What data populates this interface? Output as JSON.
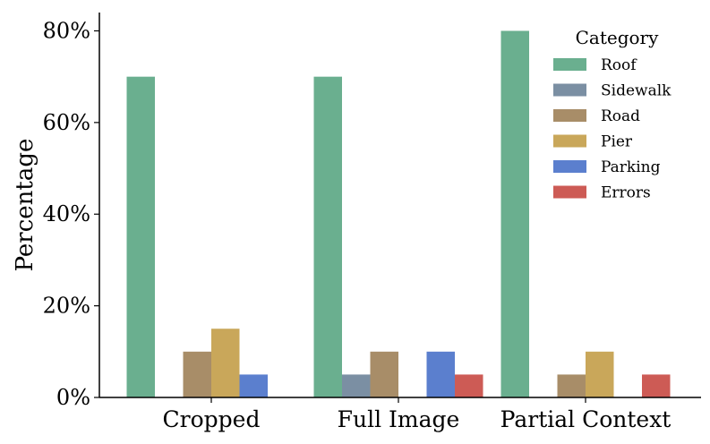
{
  "chart_data": {
    "type": "bar",
    "categories": [
      "Cropped",
      "Full Image",
      "Partial Context"
    ],
    "series": [
      {
        "name": "Roof",
        "values": [
          70,
          70,
          80
        ],
        "color": "#6aaf8f"
      },
      {
        "name": "Sidewalk",
        "values": [
          0,
          5,
          0
        ],
        "color": "#7b8fa3"
      },
      {
        "name": "Road",
        "values": [
          10,
          10,
          5
        ],
        "color": "#a88d68"
      },
      {
        "name": "Pier",
        "values": [
          15,
          0,
          10
        ],
        "color": "#c9a75a"
      },
      {
        "name": "Parking",
        "values": [
          5,
          10,
          0
        ],
        "color": "#5b7fce"
      },
      {
        "name": "Errors",
        "values": [
          0,
          5,
          5
        ],
        "color": "#cd5b55"
      }
    ],
    "title": "",
    "xlabel": "",
    "ylabel": "Percentage",
    "ylim": [
      0,
      84
    ],
    "yticks": [
      0,
      20,
      40,
      60,
      80
    ],
    "ytick_labels": [
      "0%",
      "20%",
      "40%",
      "60%",
      "80%"
    ],
    "legend_title": "Category",
    "legend_position": "top-right",
    "grid": false
  }
}
